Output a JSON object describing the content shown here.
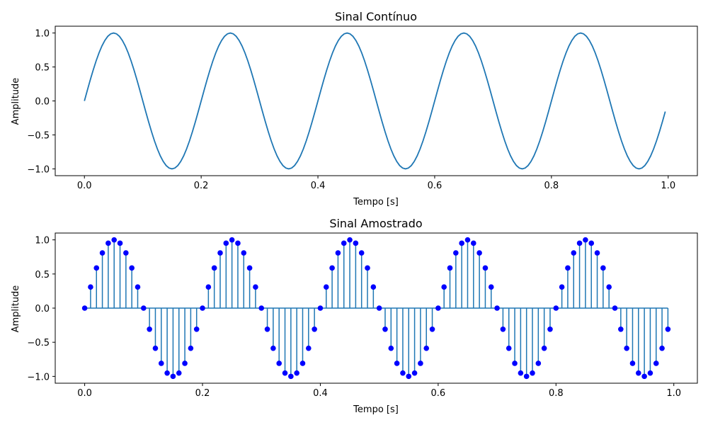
{
  "chart_data": [
    {
      "type": "line",
      "title": "Sinal Contínuo",
      "xlabel": "Tempo [s]",
      "ylabel": "Amplitude",
      "function": "sin(2*pi*5*t)",
      "frequency_hz": 5,
      "t_start": 0,
      "t_end": 0.995,
      "sample_step": 0.005,
      "xlim": [
        -0.05,
        1.05
      ],
      "ylim": [
        -1.1,
        1.1
      ],
      "xticks": [
        0,
        0.2,
        0.4,
        0.6,
        0.8,
        1
      ],
      "xtick_labels": [
        "0.0",
        "0.2",
        "0.4",
        "0.6",
        "0.8",
        "1.0"
      ],
      "yticks": [
        -1,
        -0.5,
        0,
        0.5,
        1
      ],
      "ytick_labels": [
        "−1.0",
        "−0.5",
        "0.0",
        "0.5",
        "1.0"
      ],
      "grid": false,
      "line_color": "#1f77b4"
    },
    {
      "type": "stem",
      "title": "Sinal Amostrado",
      "xlabel": "Tempo [s]",
      "ylabel": "Amplitude",
      "function": "sin(2*pi*5*t)",
      "frequency_hz": 5,
      "sampling_rate_hz": 100,
      "t_start": 0,
      "t_end": 0.99,
      "xlim": [
        -0.05,
        1.04
      ],
      "ylim": [
        -1.1,
        1.1
      ],
      "xticks": [
        0,
        0.2,
        0.4,
        0.6,
        0.8,
        1
      ],
      "xtick_labels": [
        "0.0",
        "0.2",
        "0.4",
        "0.6",
        "0.8",
        "1.0"
      ],
      "yticks": [
        -1,
        -0.5,
        0,
        0.5,
        1
      ],
      "ytick_labels": [
        "−1.0",
        "−0.5",
        "0.0",
        "0.5",
        "1.0"
      ],
      "grid": false,
      "stem_color": "#1f77b4",
      "marker_color": "#0000ff"
    }
  ]
}
